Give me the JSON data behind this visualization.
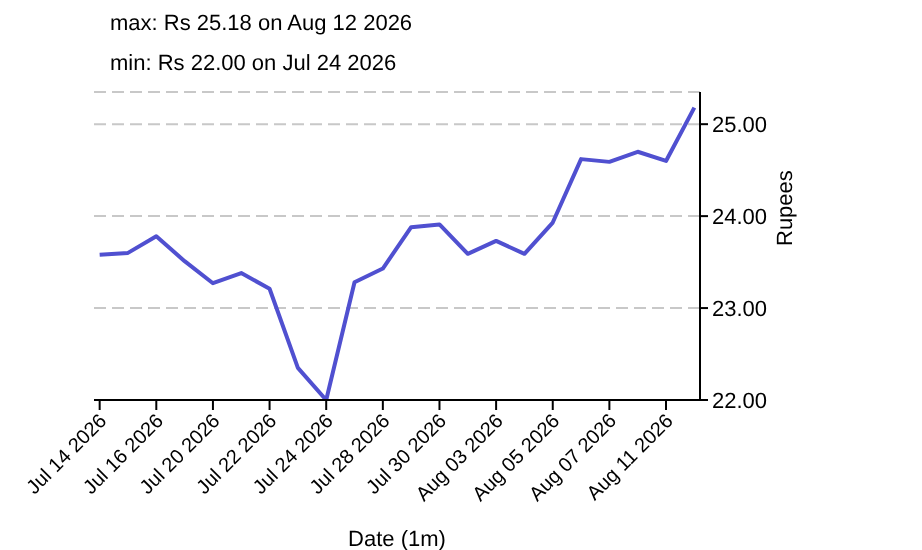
{
  "chart_data": {
    "type": "line",
    "title": "max: Rs 25.18 on Aug 12 2026",
    "subtitle": "min: Rs 22.00 on Jul 24 2026",
    "xlabel": "Date (1m)",
    "ylabel": "Rupees",
    "categories": [
      "Jul 14 2026",
      null,
      "Jul 16 2026",
      null,
      "Jul 20 2026",
      null,
      "Jul 22 2026",
      null,
      "Jul 24 2026",
      null,
      "Jul 28 2026",
      null,
      "Jul 30 2026",
      null,
      "Aug 03 2026",
      null,
      "Aug 05 2026",
      null,
      "Aug 07 2026",
      null,
      "Aug 11 2026",
      null
    ],
    "series": [
      {
        "color": "#5050d0",
        "values": [
          23.58,
          23.6,
          23.78,
          23.51,
          23.27,
          23.38,
          23.21,
          22.35,
          22.0,
          23.28,
          23.43,
          23.88,
          23.91,
          23.59,
          23.73,
          23.59,
          23.93,
          24.62,
          24.59,
          24.7,
          24.6,
          25.18
        ]
      }
    ],
    "ylim": [
      22,
      25.35
    ],
    "yticks": [
      {
        "value": 22,
        "label": "22.00"
      },
      {
        "value": 23,
        "label": "23.00"
      },
      {
        "value": 24,
        "label": "24.00"
      },
      {
        "value": 25,
        "label": "25.00"
      }
    ],
    "grid": "y",
    "line_style": "solid",
    "marker": "none",
    "legend": false
  }
}
